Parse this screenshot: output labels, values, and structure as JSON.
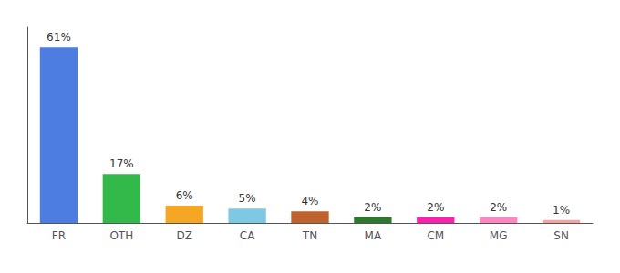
{
  "chart_data": {
    "type": "bar",
    "categories": [
      "FR",
      "OTH",
      "DZ",
      "CA",
      "TN",
      "MA",
      "CM",
      "MG",
      "SN"
    ],
    "values": [
      61,
      17,
      6,
      5,
      4,
      2,
      2,
      2,
      1
    ],
    "value_labels": [
      "61%",
      "17%",
      "6%",
      "5%",
      "4%",
      "2%",
      "2%",
      "2%",
      "1%"
    ],
    "colors": [
      "#4d7de0",
      "#33b84a",
      "#f5a623",
      "#7ec8e3",
      "#c0622b",
      "#2d7a2d",
      "#ff1fad",
      "#ff85c0",
      "#f4a4a4"
    ],
    "ylim": [
      0,
      68
    ],
    "data_labels": true,
    "tick_labels": "x",
    "grid": false
  }
}
